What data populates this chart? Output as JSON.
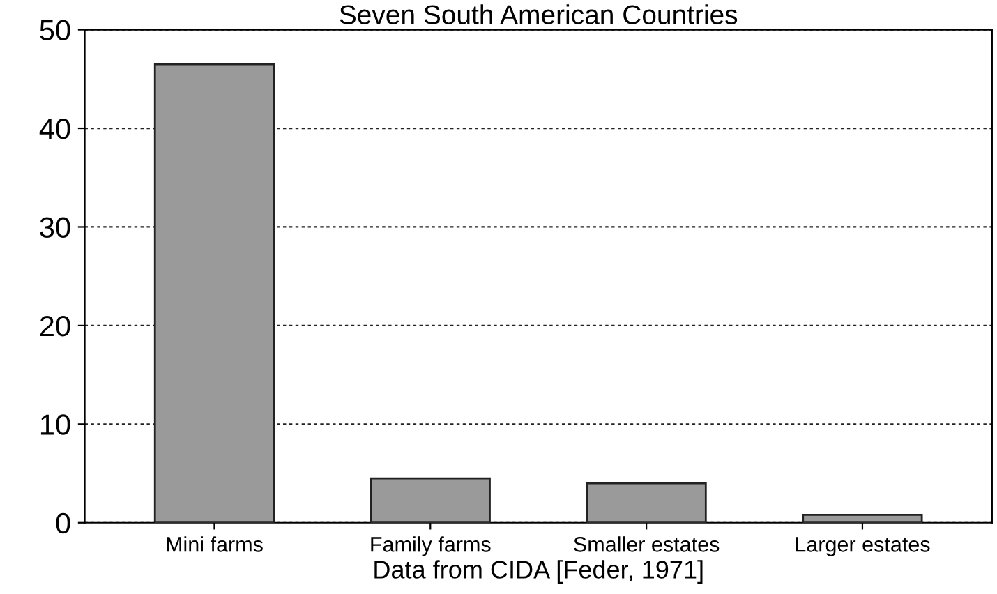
{
  "chart_data": {
    "type": "bar",
    "title": "Seven South American Countries",
    "xlabel": "Data from CIDA [Feder, 1971]",
    "categories": [
      "Mini farms",
      "Family farms",
      "Smaller estates",
      "Larger estates"
    ],
    "values": [
      46.5,
      4.5,
      4,
      0.8
    ],
    "color": "#9a9a9a",
    "ylim": [
      0,
      50
    ],
    "yticks": [
      0,
      10,
      20,
      30,
      40,
      50
    ],
    "grid": "y"
  }
}
